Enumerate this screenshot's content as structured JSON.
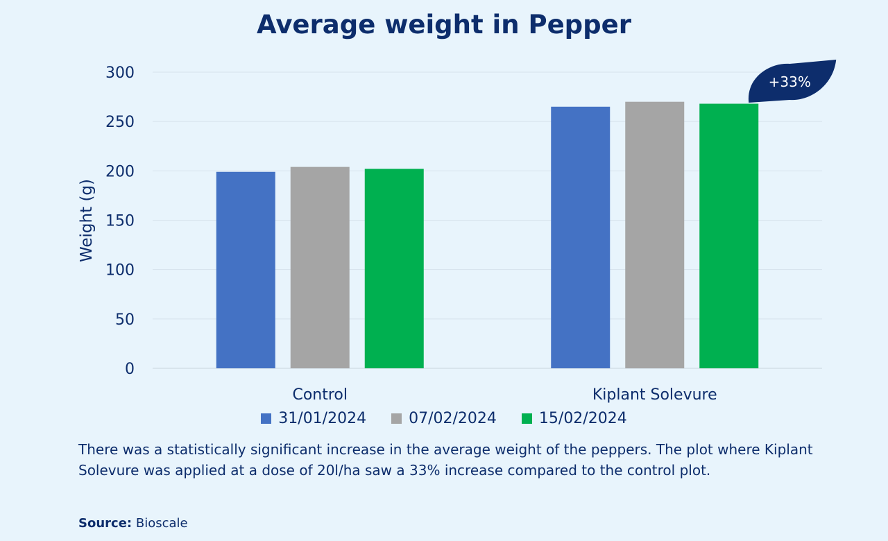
{
  "chart_data": {
    "type": "bar",
    "title": "Average weight in Pepper",
    "xlabel": "",
    "ylabel": "Weight (g)",
    "ylim": [
      0,
      300
    ],
    "yticks": [
      0,
      50,
      100,
      150,
      200,
      250,
      300
    ],
    "grid": true,
    "legend_position": "bottom",
    "categories": [
      "Control",
      "Kiplant Solevure"
    ],
    "series": [
      {
        "name": "31/01/2024",
        "values": [
          199,
          265
        ],
        "color": "#4472c4"
      },
      {
        "name": "07/02/2024",
        "values": [
          204,
          270
        ],
        "color": "#a5a5a5"
      },
      {
        "name": "15/02/2024",
        "values": [
          202,
          268
        ],
        "color": "#00b050"
      }
    ],
    "annotation": {
      "label": "+33%",
      "category": "Kiplant Solevure",
      "color": "#0d2d6c"
    }
  },
  "caption": "There was a statistically significant increase in the average weight of the peppers. The plot where Kiplant Solevure was applied at a dose of 20l/ha saw a 33% increase compared to the control plot.",
  "source": {
    "label": "Source:",
    "value": "Bioscale"
  }
}
